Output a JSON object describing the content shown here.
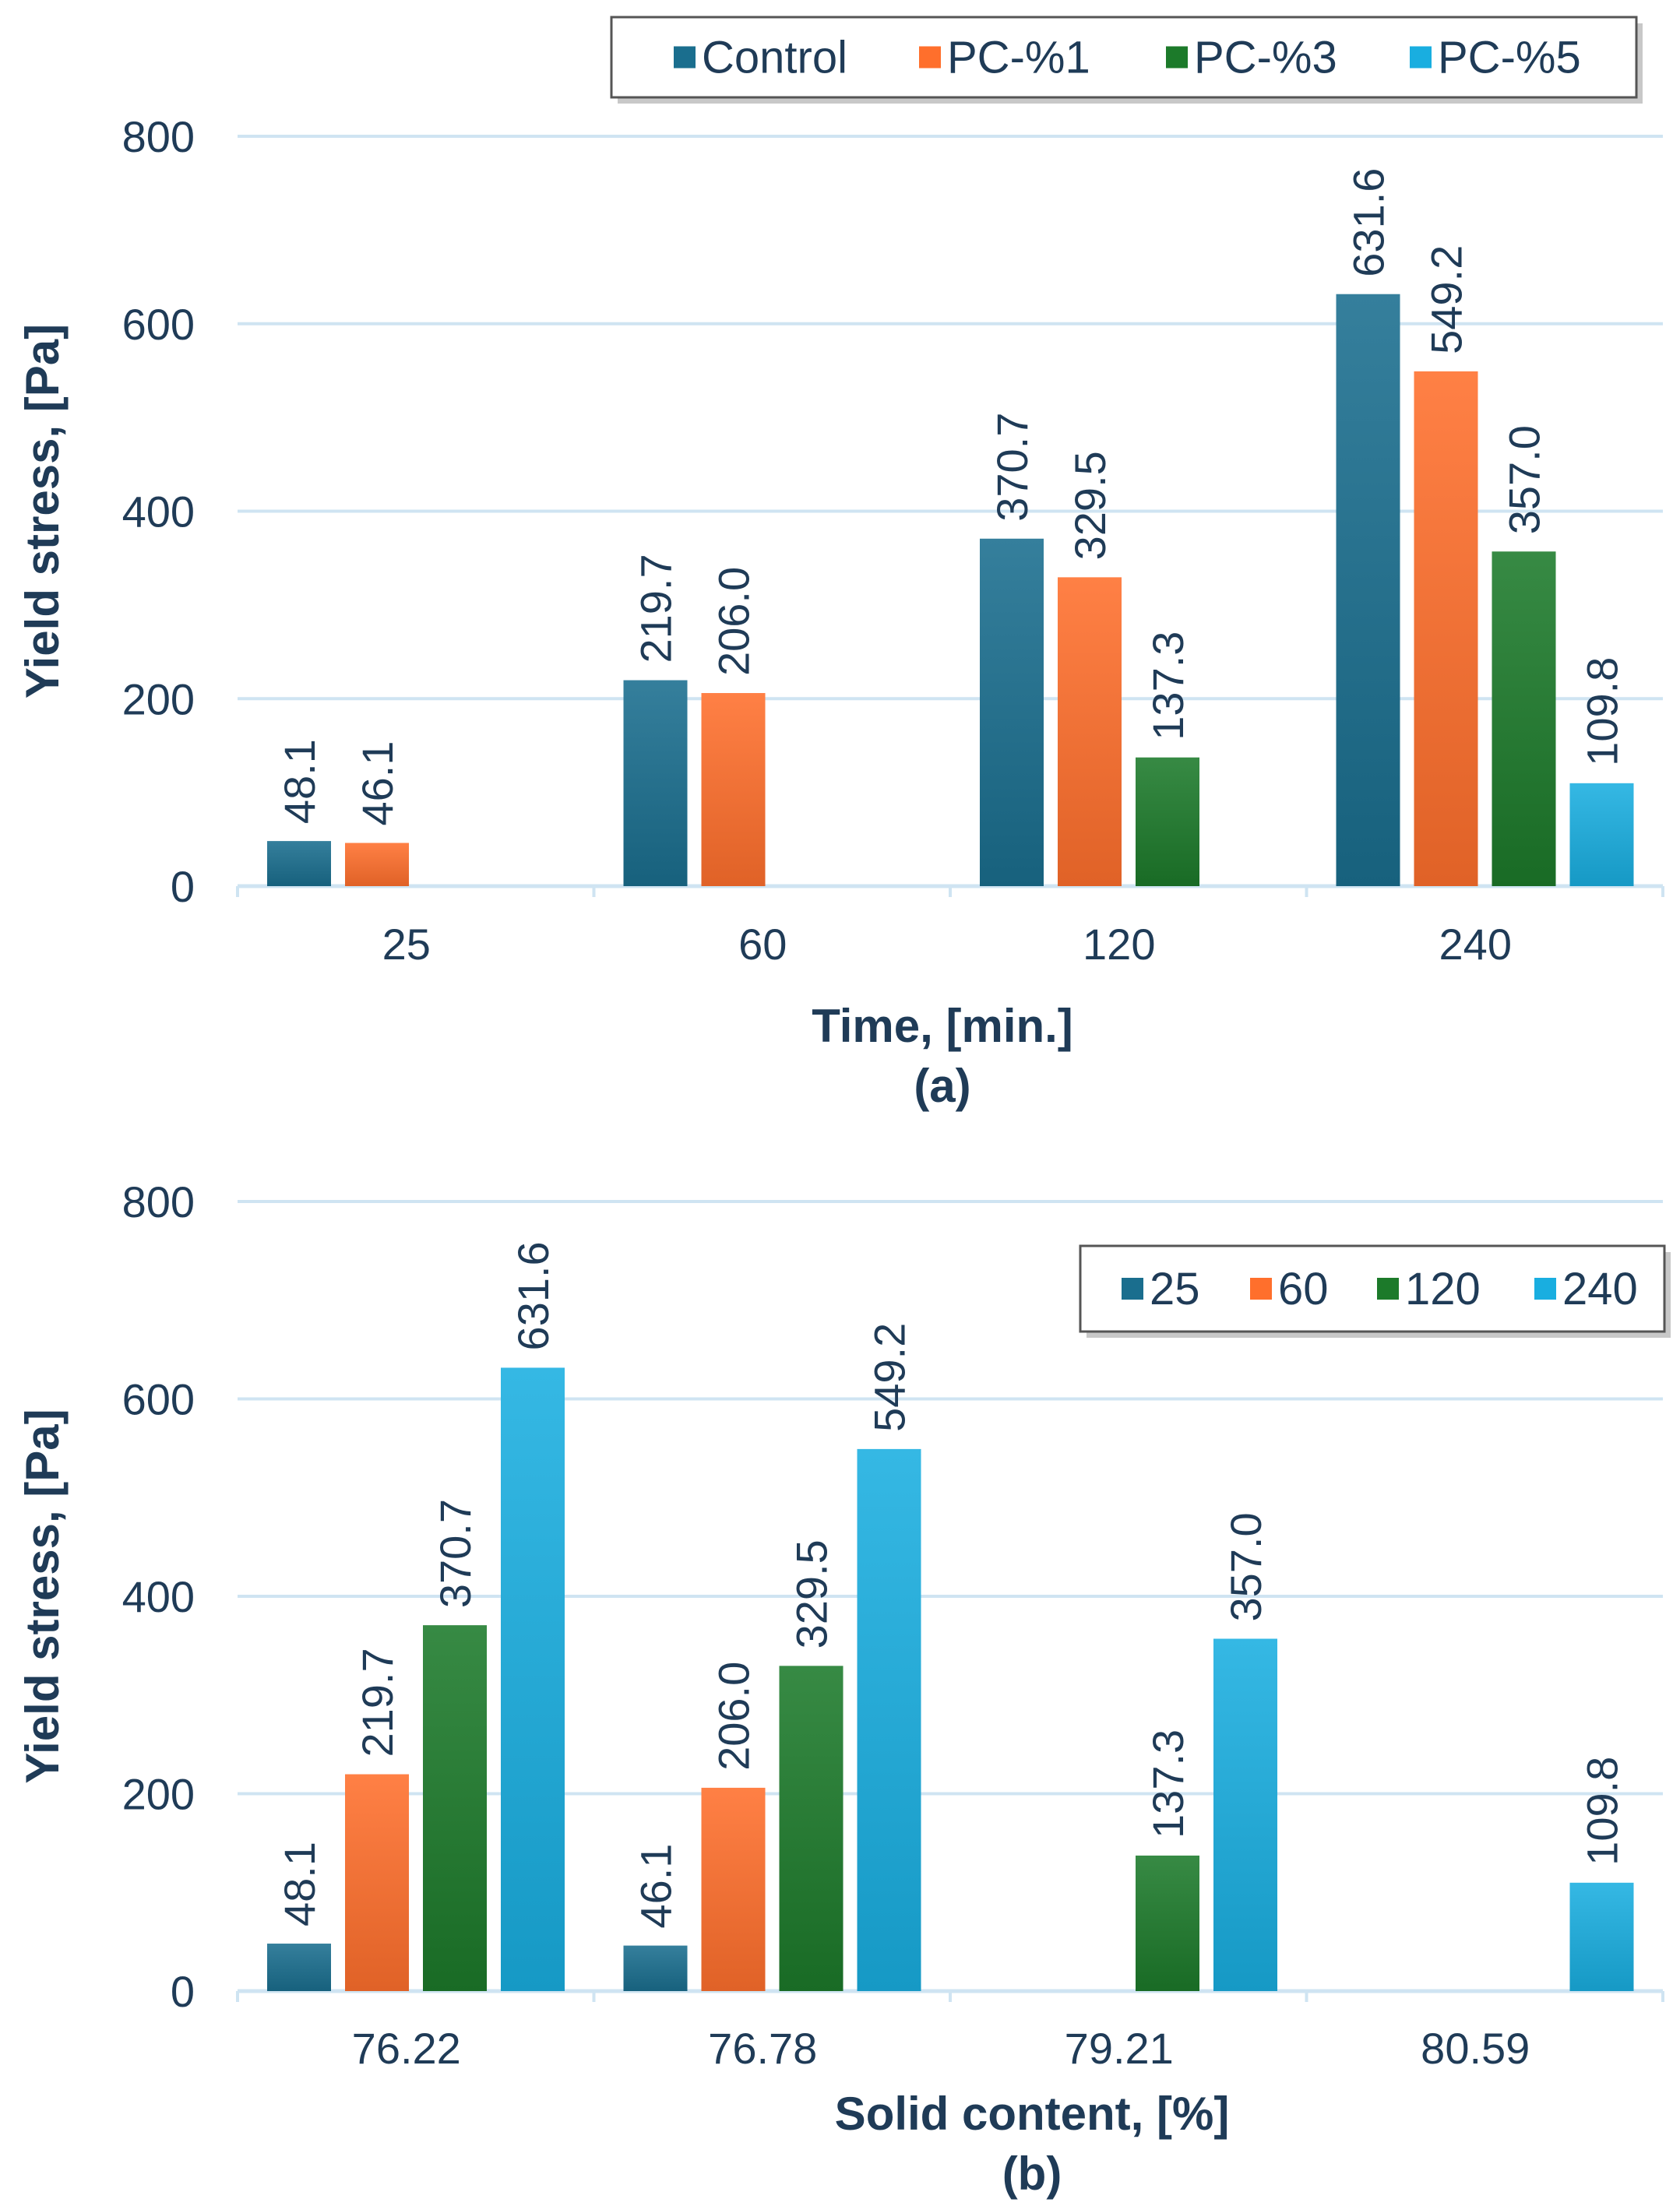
{
  "chart_data": [
    {
      "id": "a",
      "type": "bar",
      "panel_label": "(a)",
      "xlabel": "Time, [min.]",
      "ylabel": "Yield stress, [Pa]",
      "ylim": [
        0,
        800
      ],
      "yticks": [
        "0",
        "200",
        "400",
        "600",
        "800"
      ],
      "grid": true,
      "legend_position": "top-right",
      "categories": [
        "25",
        "60",
        "120",
        "240"
      ],
      "series": [
        {
          "name": "Control",
          "color": "#1a6e8e",
          "values": [
            48.1,
            219.7,
            370.7,
            631.6
          ],
          "labels": [
            "48.1",
            "219.7",
            "370.7",
            "631.6"
          ]
        },
        {
          "name": "PC-%1",
          "color": "#ff6f2c",
          "values": [
            46.1,
            206.0,
            329.5,
            549.2
          ],
          "labels": [
            "46.1",
            "206.0",
            "329.5",
            "549.2"
          ]
        },
        {
          "name": "PC-%3",
          "color": "#1c7a2a",
          "values": [
            null,
            null,
            137.3,
            357.0
          ],
          "labels": [
            null,
            null,
            "137.3",
            "357.0"
          ]
        },
        {
          "name": "PC-%5",
          "color": "#19aee0",
          "values": [
            null,
            null,
            null,
            109.8
          ],
          "labels": [
            null,
            null,
            null,
            "109.8"
          ]
        }
      ]
    },
    {
      "id": "b",
      "type": "bar",
      "panel_label": "(b)",
      "xlabel": "Solid content, [%]",
      "ylabel": "Yield stress, [Pa]",
      "ylim": [
        0,
        800
      ],
      "yticks": [
        "0",
        "200",
        "400",
        "600",
        "800"
      ],
      "grid": true,
      "legend_position": "top-right",
      "categories": [
        "76.22",
        "76.78",
        "79.21",
        "80.59"
      ],
      "series": [
        {
          "name": "25",
          "color": "#1a6e8e",
          "values": [
            48.1,
            46.1,
            null,
            null
          ],
          "labels": [
            "48.1",
            "46.1",
            null,
            null
          ]
        },
        {
          "name": "60",
          "color": "#ff6f2c",
          "values": [
            219.7,
            206.0,
            null,
            null
          ],
          "labels": [
            "219.7",
            "206.0",
            null,
            null
          ]
        },
        {
          "name": "120",
          "color": "#1c7a2a",
          "values": [
            370.7,
            329.5,
            137.3,
            null
          ],
          "labels": [
            "370.7",
            "329.5",
            "137.3",
            null
          ]
        },
        {
          "name": "240",
          "color": "#19aee0",
          "values": [
            631.6,
            549.2,
            357.0,
            109.8
          ],
          "labels": [
            "631.6",
            "549.2",
            "357.0",
            "109.8"
          ]
        }
      ]
    }
  ]
}
